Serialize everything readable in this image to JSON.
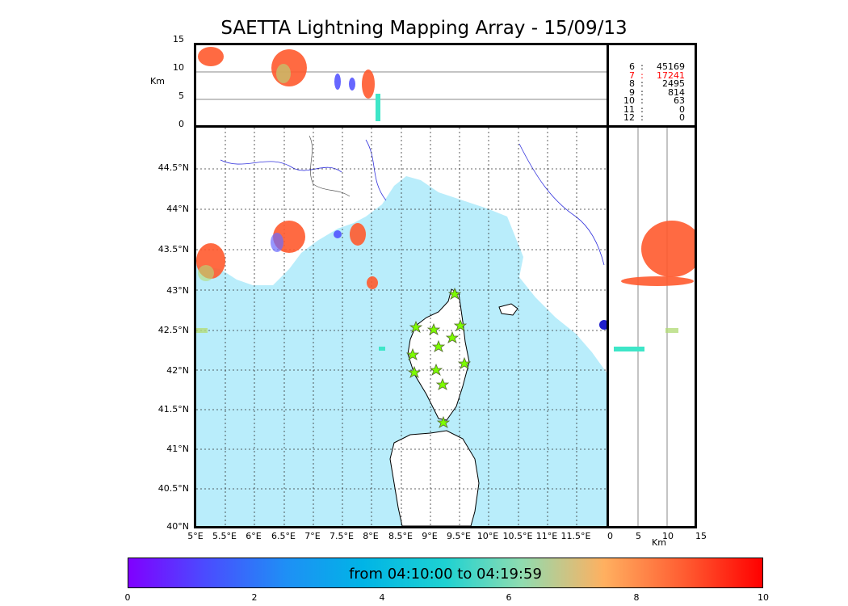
{
  "title": "SAETTA Lightning Mapping Array - 15/09/13",
  "top_panel": {
    "ylabel": "Km",
    "yticks": [
      "15",
      "10",
      "5",
      "0"
    ]
  },
  "side_panel": {
    "xlabel": "Km",
    "xticks": [
      "0",
      "5",
      "10",
      "15"
    ]
  },
  "map": {
    "lat_ticks": [
      "44.5°N",
      "44°N",
      "43.5°N",
      "43°N",
      "42.5°N",
      "42°N",
      "41.5°N",
      "41°N",
      "40.5°N",
      "40°N"
    ],
    "lon_ticks": [
      "5°E",
      "5.5°E",
      "6°E",
      "6.5°E",
      "7°E",
      "7.5°E",
      "8°E",
      "8.5°E",
      "9°E",
      "9.5°E",
      "10°E",
      "10.5°E",
      "11°E",
      "11.5°E"
    ],
    "sea_color": "#b9edfb",
    "station_count": 12
  },
  "stats": [
    {
      "level": "6",
      "sep": ":",
      "count": "45169",
      "highlight": false
    },
    {
      "level": "7",
      "sep": ":",
      "count": "17241",
      "highlight": true
    },
    {
      "level": "8",
      "sep": ":",
      "count": "2495",
      "highlight": false
    },
    {
      "level": "9",
      "sep": ":",
      "count": "814",
      "highlight": false
    },
    {
      "level": "10",
      "sep": ":",
      "count": "63",
      "highlight": false
    },
    {
      "level": "11",
      "sep": ":",
      "count": "0",
      "highlight": false
    },
    {
      "level": "12",
      "sep": ":",
      "count": "0",
      "highlight": false
    }
  ],
  "colorbar": {
    "text": "from 04:10:00 to 04:19:59",
    "ticks": [
      "0",
      "2",
      "4",
      "6",
      "8",
      "10"
    ]
  }
}
